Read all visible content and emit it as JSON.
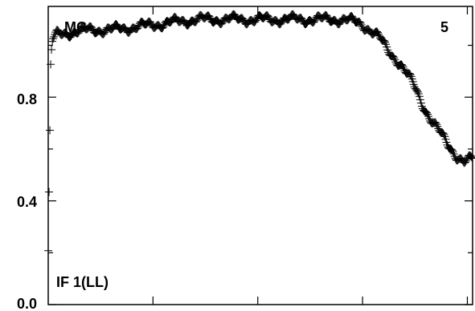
{
  "chart_data": {
    "type": "scatter",
    "title": "",
    "xlabel": "",
    "ylabel": "",
    "ylim": [
      0.0,
      1.15
    ],
    "xlim": [
      0,
      1
    ],
    "y_ticks": [
      0.0,
      0.4,
      0.8
    ],
    "y_tick_labels": [
      "0.0",
      "0.4",
      "0.8"
    ],
    "x_tick_labels": [],
    "grid": false,
    "marker": "plus",
    "annotations": {
      "top_left": "MC",
      "top_right": "5",
      "bottom_left": "IF 1(LL)"
    },
    "series": [
      {
        "values_profile": [
          [
            0.0,
            0.2
          ],
          [
            0.003,
            0.55
          ],
          [
            0.006,
            0.95
          ],
          [
            0.01,
            1.02
          ],
          [
            0.02,
            1.04
          ],
          [
            0.05,
            1.05
          ],
          [
            0.1,
            1.06
          ],
          [
            0.15,
            1.06
          ],
          [
            0.2,
            1.07
          ],
          [
            0.25,
            1.08
          ],
          [
            0.3,
            1.09
          ],
          [
            0.35,
            1.1
          ],
          [
            0.4,
            1.1
          ],
          [
            0.45,
            1.1
          ],
          [
            0.5,
            1.1
          ],
          [
            0.55,
            1.1
          ],
          [
            0.6,
            1.1
          ],
          [
            0.65,
            1.1
          ],
          [
            0.7,
            1.1
          ],
          [
            0.74,
            1.08
          ],
          [
            0.76,
            1.06
          ],
          [
            0.78,
            1.03
          ],
          [
            0.8,
            0.98
          ],
          [
            0.83,
            0.93
          ],
          [
            0.86,
            0.85
          ],
          [
            0.88,
            0.78
          ],
          [
            0.9,
            0.72
          ],
          [
            0.92,
            0.67
          ],
          [
            0.94,
            0.62
          ],
          [
            0.96,
            0.58
          ],
          [
            0.98,
            0.55
          ],
          [
            1.0,
            0.56
          ]
        ]
      }
    ]
  }
}
